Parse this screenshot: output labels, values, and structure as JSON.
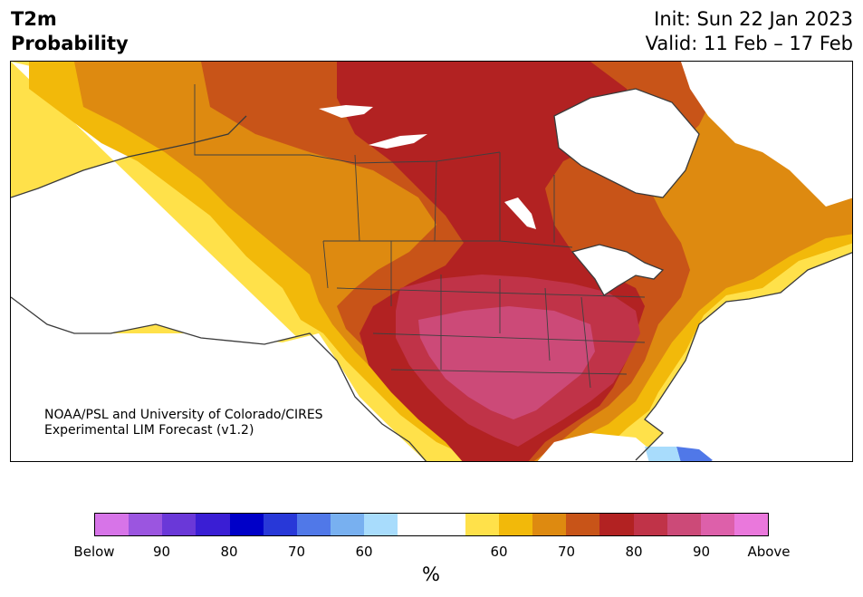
{
  "header": {
    "variable": "T2m",
    "product": "Probability",
    "init": "Init: Sun 22 Jan 2023",
    "valid": "Valid: 11 Feb – 17 Feb"
  },
  "credit": {
    "line1": "NOAA/PSL and University of Colorado/CIRES",
    "line2": "Experimental LIM Forecast (v1.2)"
  },
  "colorbar": {
    "colors": [
      "#d774e8",
      "#9b55e0",
      "#6a38d8",
      "#3a1ed4",
      "#0000c8",
      "#2838d8",
      "#5078e8",
      "#78b0f0",
      "#a8dcfc",
      "#ffffff",
      "#ffffff",
      "#ffe14a",
      "#f2b90a",
      "#de8a10",
      "#c85418",
      "#b22222",
      "#c03348",
      "#cc4a78",
      "#dd60aa",
      "#ea78dc"
    ],
    "ticks": [
      "Below",
      "90",
      "80",
      "70",
      "60",
      "60",
      "70",
      "80",
      "90",
      "Above"
    ],
    "unit": "%"
  }
}
